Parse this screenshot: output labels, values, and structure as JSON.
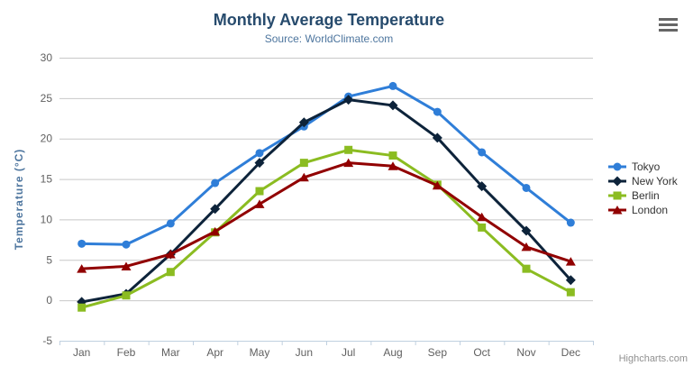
{
  "chart_data": {
    "type": "line",
    "title": "Monthly Average Temperature",
    "subtitle": "Source: WorldClimate.com",
    "xlabel": "",
    "ylabel": "Temperature (°C)",
    "ylim": [
      -5,
      30
    ],
    "y_ticks": [
      -5,
      0,
      5,
      10,
      15,
      20,
      25,
      30
    ],
    "grid": true,
    "legend_position": "right",
    "categories": [
      "Jan",
      "Feb",
      "Mar",
      "Apr",
      "May",
      "Jun",
      "Jul",
      "Aug",
      "Sep",
      "Oct",
      "Nov",
      "Dec"
    ],
    "series": [
      {
        "name": "Tokyo",
        "color": "#2f7ed8",
        "marker": "circle",
        "values": [
          7.0,
          6.9,
          9.5,
          14.5,
          18.2,
          21.5,
          25.2,
          26.5,
          23.3,
          18.3,
          13.9,
          9.6
        ]
      },
      {
        "name": "New York",
        "color": "#0d233a",
        "marker": "diamond",
        "values": [
          -0.2,
          0.8,
          5.7,
          11.3,
          17.0,
          22.0,
          24.8,
          24.1,
          20.1,
          14.1,
          8.6,
          2.5
        ]
      },
      {
        "name": "Berlin",
        "color": "#8bbc21",
        "marker": "square",
        "values": [
          -0.9,
          0.6,
          3.5,
          8.4,
          13.5,
          17.0,
          18.6,
          17.9,
          14.3,
          9.0,
          3.9,
          1.0
        ]
      },
      {
        "name": "London",
        "color": "#910000",
        "marker": "triangle",
        "values": [
          3.9,
          4.2,
          5.7,
          8.5,
          11.9,
          15.2,
          17.0,
          16.6,
          14.2,
          10.3,
          6.6,
          4.8
        ]
      }
    ]
  },
  "credits": {
    "label": "Highcharts.com"
  },
  "export_menu": {
    "icon": "hamburger-icon"
  },
  "colors": {
    "background": "#ffffff",
    "title": "#274b6d",
    "subtitle": "#4d759e",
    "axis_title": "#4d759e",
    "axis_labels": "#606060",
    "grid_line": "#c8c8c8",
    "axis_line": "#c0d0e0",
    "legend_text": "#333333",
    "credits": "#909090",
    "menu_icon": "#666666"
  }
}
